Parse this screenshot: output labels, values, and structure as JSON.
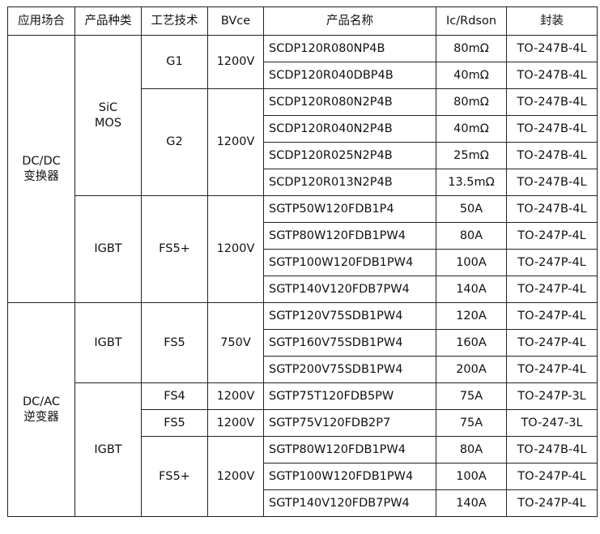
{
  "headers": [
    "应用场合",
    "产品种类",
    "工艺技术",
    "BVce",
    "产品名称",
    "Ic/Rdson",
    "封装"
  ],
  "applications": [
    "DC/DC\n变换器",
    "DC/AC\n逆变器"
  ],
  "types": [
    "SiC\nMOS",
    "IGBT",
    "IGBT",
    "IGBT"
  ],
  "processes": [
    "G1",
    "G2",
    "FS5+",
    "FS5",
    "FS4",
    "FS5",
    "FS5+"
  ],
  "bvce": [
    "1200V",
    "1200V",
    "1200V",
    "750V",
    "1200V",
    "1200V",
    "1200V"
  ],
  "rows": [
    {
      "name": "SCDP120R080NP4B",
      "rating": "80mΩ",
      "package": "TO-247B-4L"
    },
    {
      "name": "SCDP120R040DBP4B",
      "rating": "40mΩ",
      "package": "TO-247B-4L"
    },
    {
      "name": "SCDP120R080N2P4B",
      "rating": "80mΩ",
      "package": "TO-247B-4L"
    },
    {
      "name": "SCDP120R040N2P4B",
      "rating": "40mΩ",
      "package": "TO-247B-4L"
    },
    {
      "name": "SCDP120R025N2P4B",
      "rating": "25mΩ",
      "package": "TO-247B-4L"
    },
    {
      "name": "SCDP120R013N2P4B",
      "rating": "13.5mΩ",
      "package": "TO-247B-4L"
    },
    {
      "name": "SGTP50W120FDB1P4",
      "rating": "50A",
      "package": "TO-247B-4L"
    },
    {
      "name": "SGTP80W120FDB1PW4",
      "rating": "80A",
      "package": "TO-247P-4L"
    },
    {
      "name": "SGTP100W120FDB1PW4",
      "rating": "100A",
      "package": "TO-247P-4L"
    },
    {
      "name": "SGTP140V120FDB7PW4",
      "rating": "140A",
      "package": "TO-247P-4L"
    },
    {
      "name": "SGTP120V75SDB1PW4",
      "rating": "120A",
      "package": "TO-247P-4L"
    },
    {
      "name": "SGTP160V75SDB1PW4",
      "rating": "160A",
      "package": "TO-247P-4L"
    },
    {
      "name": "SGTP200V75SDB1PW4",
      "rating": "200A",
      "package": "TO-247P-4L"
    },
    {
      "name": "SGTP75T120FDB5PW",
      "rating": "75A",
      "package": "TO-247P-3L"
    },
    {
      "name": "SGTP75V120FDB2P7",
      "rating": "75A",
      "package": "TO-247-3L"
    },
    {
      "name": "SGTP80W120FDB1PW4",
      "rating": "80A",
      "package": "TO-247B-4L"
    },
    {
      "name": "SGTP100W120FDB1PW4",
      "rating": "100A",
      "package": "TO-247P-4L"
    },
    {
      "name": "SGTP140V120FDB7PW4",
      "rating": "140A",
      "package": "TO-247P-4L"
    }
  ]
}
